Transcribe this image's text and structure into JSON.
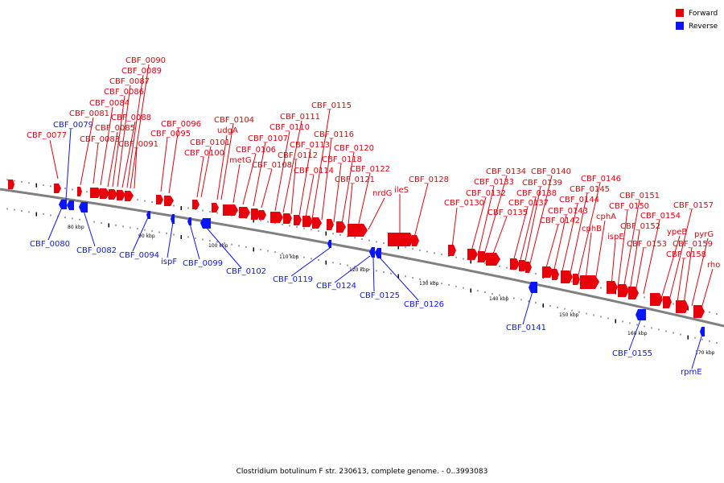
{
  "caption": "Clostridium botulinum F str. 230613, complete genome. - 0..3993083",
  "colors": {
    "forward": "#e8000b",
    "reverse": "#0a14ff",
    "backbone": "#808080"
  },
  "legend": [
    {
      "name": "Forward",
      "color": "#e8000b",
      "icon": "red-square-icon"
    },
    {
      "name": "Reverse",
      "color": "#0a14ff",
      "icon": "blue-square-icon"
    }
  ],
  "ticks": [
    "80 kbp",
    "90 kbp",
    "100 kbp",
    "110 kbp",
    "120 kbp",
    "130 kbp",
    "140 kbp",
    "150 kbp",
    "160 kbp",
    "170 kbp"
  ],
  "forward_labels": [
    "CBF_0077",
    "CBF_0081",
    "CBF_0083",
    "CBF_0084",
    "CBF_0085",
    "CBF_0086",
    "CBF_0087",
    "CBF_0088",
    "CBF_0089",
    "CBF_0090",
    "CBF_0091",
    "CBF_0095",
    "CBF_0096",
    "CBF_0100",
    "CBF_0101",
    "udgA",
    "CBF_0104",
    "metG",
    "CBF_0106",
    "CBF_0107",
    "CBF_0108",
    "CBF_0110",
    "CBF_0111",
    "CBF_0112",
    "CBF_0113",
    "CBF_0114",
    "CBF_0115",
    "CBF_0116",
    "CBF_0118",
    "CBF_0120",
    "CBF_0121",
    "CBF_0122",
    "nrdG",
    "ileS",
    "CBF_0128",
    "CBF_0130",
    "CBF_0132",
    "CBF_0133",
    "CBF_0134",
    "CBF_0135",
    "CBF_0137",
    "CBF_0138",
    "CBF_0139",
    "CBF_0140",
    "CBF_0142",
    "CBF_0143",
    "CBF_0144",
    "CBF_0145",
    "CBF_0146",
    "cphB",
    "cphA",
    "ispE",
    "CBF_0150",
    "CBF_0151",
    "CBF_0152",
    "CBF_0153",
    "CBF_0154",
    "ypeB",
    "CBF_0157",
    "CBF_0158",
    "CBF_0159",
    "pyrG",
    "rho"
  ],
  "reverse_labels": [
    "CBF_0079",
    "CBF_0080",
    "CBF_0082",
    "CBF_0094",
    "ispF",
    "CBF_0099",
    "CBF_0102",
    "CBF_0119",
    "CBF_0124",
    "CBF_0125",
    "CBF_0126",
    "CBF_0141",
    "CBF_0155",
    "rpmE"
  ]
}
